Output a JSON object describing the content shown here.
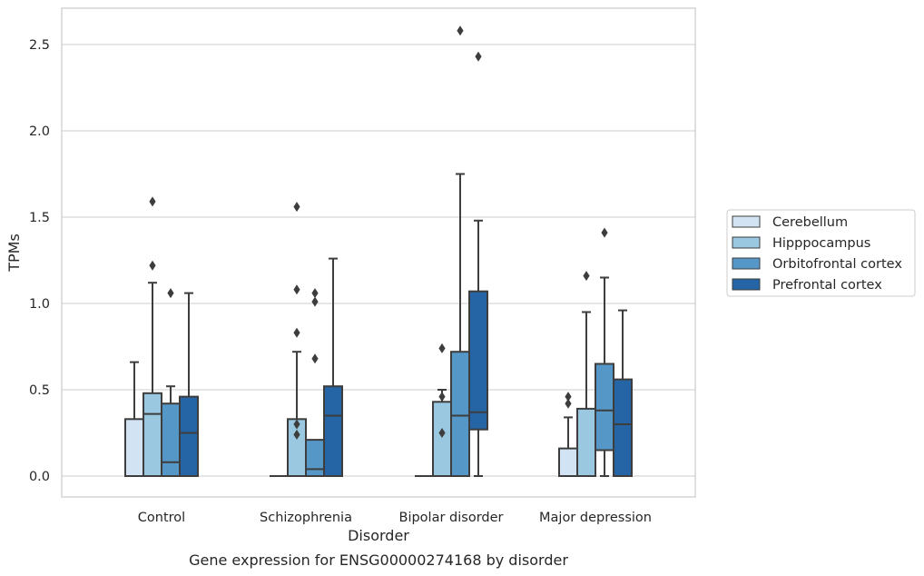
{
  "chart_data": {
    "type": "box",
    "title": "Gene expression for ENSG00000274168 by disorder",
    "xlabel": "Disorder",
    "ylabel": "TPMs",
    "ylim": [
      -0.12,
      2.72
    ],
    "yticks": [
      0.0,
      0.5,
      1.0,
      1.5,
      2.0,
      2.5
    ],
    "ytick_labels": [
      "0.0",
      "0.5",
      "1.0",
      "1.5",
      "2.0",
      "2.5"
    ],
    "grid": true,
    "legend_position": "right",
    "categories": [
      "Control",
      "Schizophrenia",
      "Bipolar disorder",
      "Major depression"
    ],
    "series": [
      {
        "name": "Cerebellum",
        "color": "#d2e3f3",
        "boxes": [
          {
            "q1": 0.0,
            "median": 0.0,
            "q3": 0.33,
            "whislo": 0.0,
            "whishi": 0.66,
            "fliers": []
          },
          {
            "q1": 0.0,
            "median": 0.0,
            "q3": 0.0,
            "whislo": 0.0,
            "whishi": 0.0,
            "fliers": []
          },
          {
            "q1": 0.0,
            "median": 0.0,
            "q3": 0.0,
            "whislo": 0.0,
            "whishi": 0.0,
            "fliers": []
          },
          {
            "q1": 0.0,
            "median": 0.0,
            "q3": 0.16,
            "whislo": 0.0,
            "whishi": 0.34,
            "fliers": [
              0.42,
              0.46
            ]
          }
        ]
      },
      {
        "name": "Hipppocampus",
        "color": "#9ac8e0",
        "boxes": [
          {
            "q1": 0.0,
            "median": 0.36,
            "q3": 0.48,
            "whislo": 0.0,
            "whishi": 1.12,
            "fliers": [
              1.22,
              1.59
            ]
          },
          {
            "q1": 0.0,
            "median": 0.0,
            "q3": 0.33,
            "whislo": 0.0,
            "whishi": 0.72,
            "fliers": [
              0.24,
              0.3,
              0.83,
              1.08,
              1.56
            ]
          },
          {
            "q1": 0.0,
            "median": 0.0,
            "q3": 0.43,
            "whislo": 0.0,
            "whishi": 0.5,
            "fliers": [
              0.25,
              0.46,
              0.74
            ]
          },
          {
            "q1": 0.0,
            "median": 0.0,
            "q3": 0.39,
            "whislo": 0.0,
            "whishi": 0.95,
            "fliers": [
              1.16
            ]
          }
        ]
      },
      {
        "name": "Orbitofrontal cortex",
        "color": "#5597c7",
        "boxes": [
          {
            "q1": 0.0,
            "median": 0.08,
            "q3": 0.42,
            "whislo": 0.0,
            "whishi": 0.52,
            "fliers": [
              1.06
            ]
          },
          {
            "q1": 0.0,
            "median": 0.04,
            "q3": 0.21,
            "whislo": 0.0,
            "whishi": 0.21,
            "fliers": [
              0.68,
              1.01,
              1.06
            ]
          },
          {
            "q1": 0.0,
            "median": 0.35,
            "q3": 0.72,
            "whislo": 0.0,
            "whishi": 1.75,
            "fliers": [
              2.58
            ]
          },
          {
            "q1": 0.15,
            "median": 0.38,
            "q3": 0.65,
            "whislo": 0.0,
            "whishi": 1.15,
            "fliers": [
              1.41
            ]
          }
        ]
      },
      {
        "name": "Prefrontal cortex",
        "color": "#2665a5",
        "boxes": [
          {
            "q1": 0.0,
            "median": 0.25,
            "q3": 0.46,
            "whislo": 0.0,
            "whishi": 1.06,
            "fliers": []
          },
          {
            "q1": 0.0,
            "median": 0.35,
            "q3": 0.52,
            "whislo": 0.0,
            "whishi": 1.26,
            "fliers": []
          },
          {
            "q1": 0.27,
            "median": 0.37,
            "q3": 1.07,
            "whislo": 0.0,
            "whishi": 1.48,
            "fliers": [
              2.43
            ]
          },
          {
            "q1": 0.0,
            "median": 0.3,
            "q3": 0.56,
            "whislo": 0.0,
            "whishi": 0.96,
            "fliers": []
          }
        ]
      }
    ]
  }
}
